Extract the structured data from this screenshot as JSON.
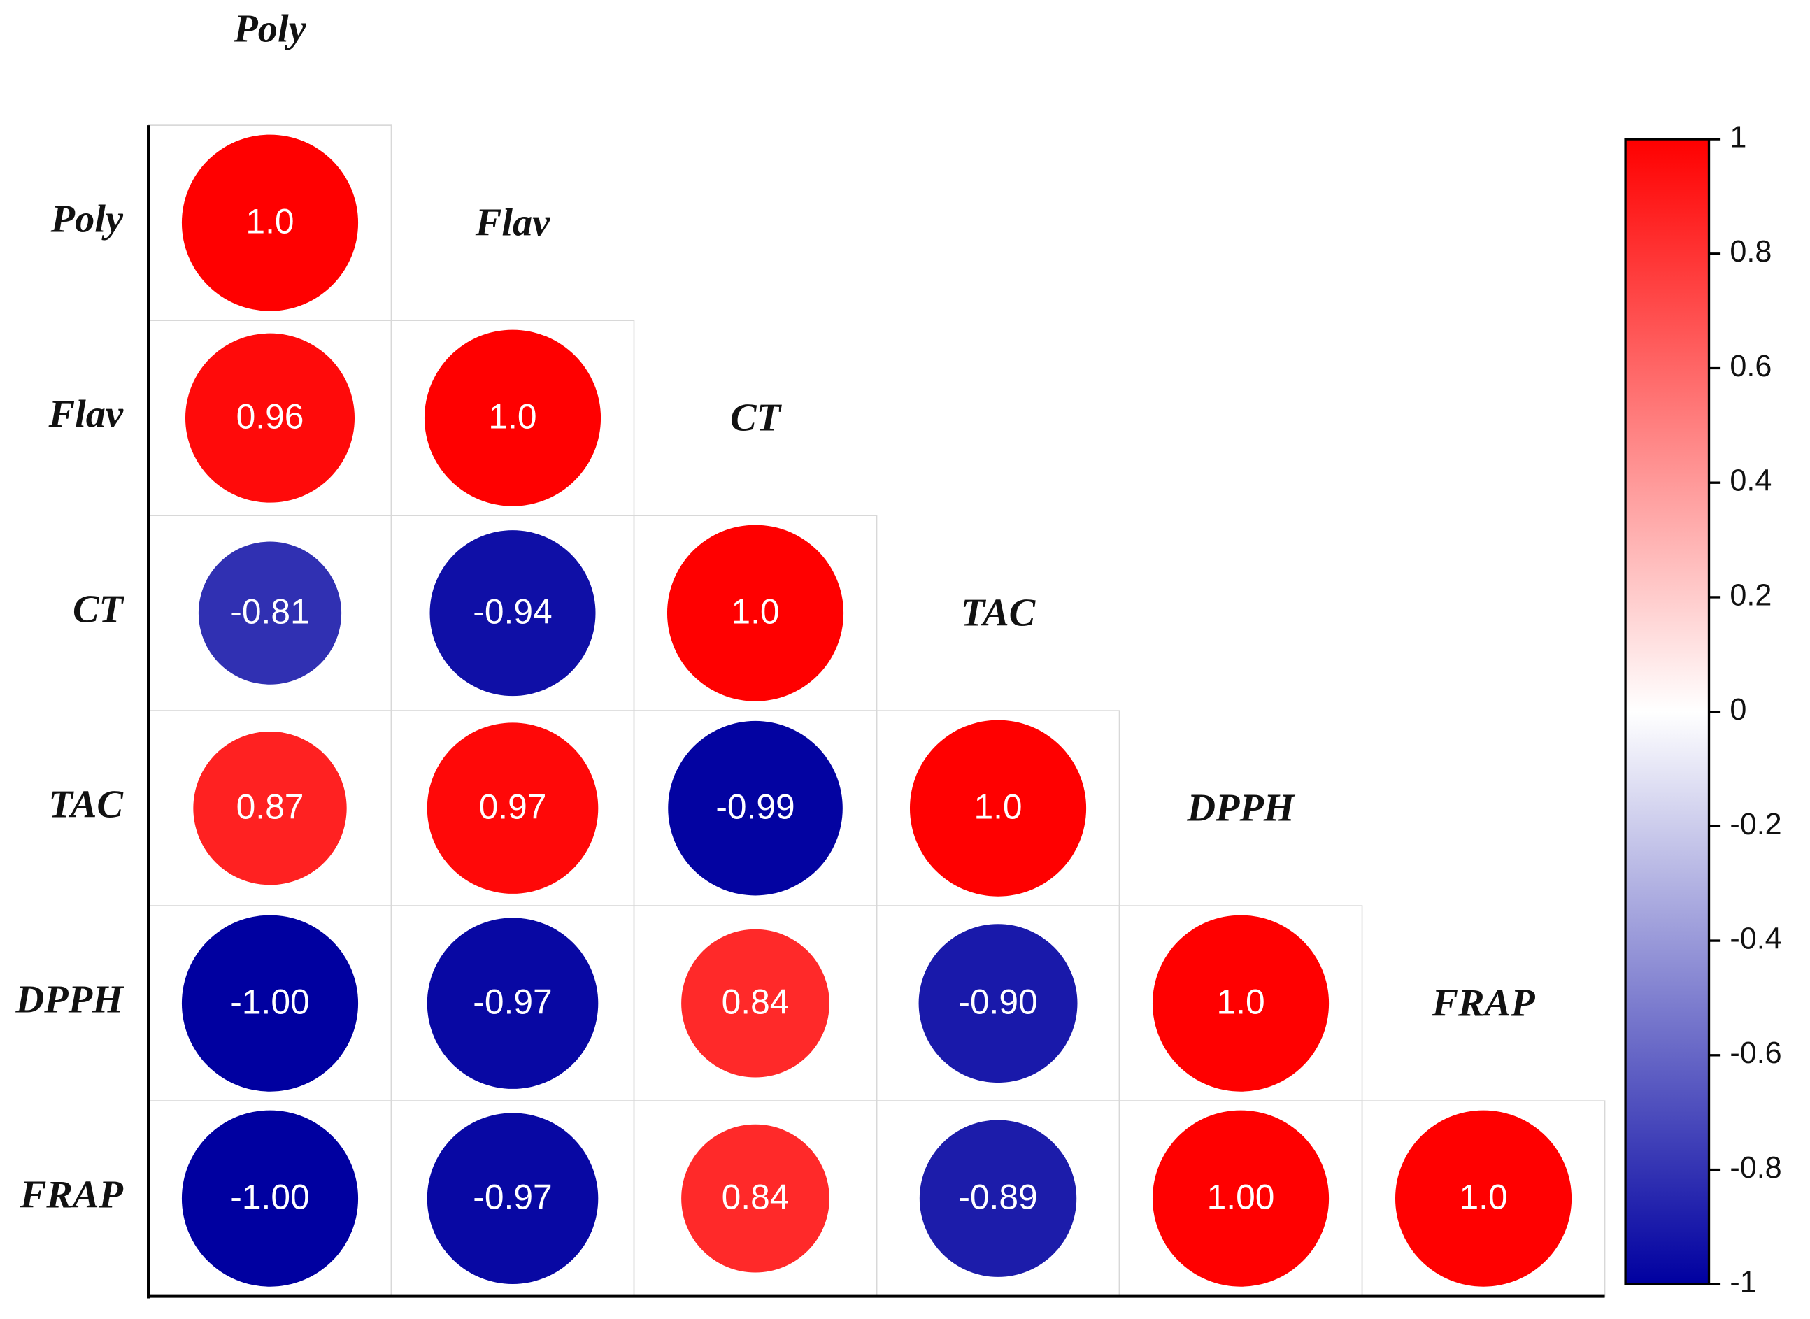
{
  "chart_data": {
    "type": "correlogram",
    "variables": [
      "Poly",
      "Flav",
      "CT",
      "TAC",
      "DPPH",
      "FRAP"
    ],
    "values": [
      [
        1.0,
        null,
        null,
        null,
        null,
        null
      ],
      [
        0.96,
        1.0,
        null,
        null,
        null,
        null
      ],
      [
        -0.81,
        -0.94,
        1.0,
        null,
        null,
        null
      ],
      [
        0.87,
        0.97,
        -0.99,
        1.0,
        null,
        null
      ],
      [
        -1.0,
        -0.97,
        0.84,
        -0.9,
        1.0,
        null
      ],
      [
        -1.0,
        -0.97,
        0.84,
        -0.89,
        1.0,
        1.0
      ]
    ],
    "value_labels": [
      [
        "1.0",
        null,
        null,
        null,
        null,
        null
      ],
      [
        "0.96",
        "1.0",
        null,
        null,
        null,
        null
      ],
      [
        "-0.81",
        "-0.94",
        "1.0",
        null,
        null,
        null
      ],
      [
        "0.87",
        "0.97",
        "-0.99",
        "1.0",
        null,
        null
      ],
      [
        "-1.00",
        "-0.97",
        "0.84",
        "-0.90",
        "1.0",
        null
      ],
      [
        "-1.00",
        "-0.97",
        "0.84",
        "-0.89",
        "1.00",
        "1.0"
      ]
    ],
    "colormap": [
      "#0000a0",
      "#ffffff",
      "#ff0000"
    ],
    "colorbar": {
      "ylim": [
        -1,
        1
      ],
      "yticks": [
        1,
        0.8,
        0.6,
        0.4,
        0.2,
        0,
        -0.2,
        -0.4,
        -0.6,
        -0.8,
        -1
      ]
    }
  }
}
